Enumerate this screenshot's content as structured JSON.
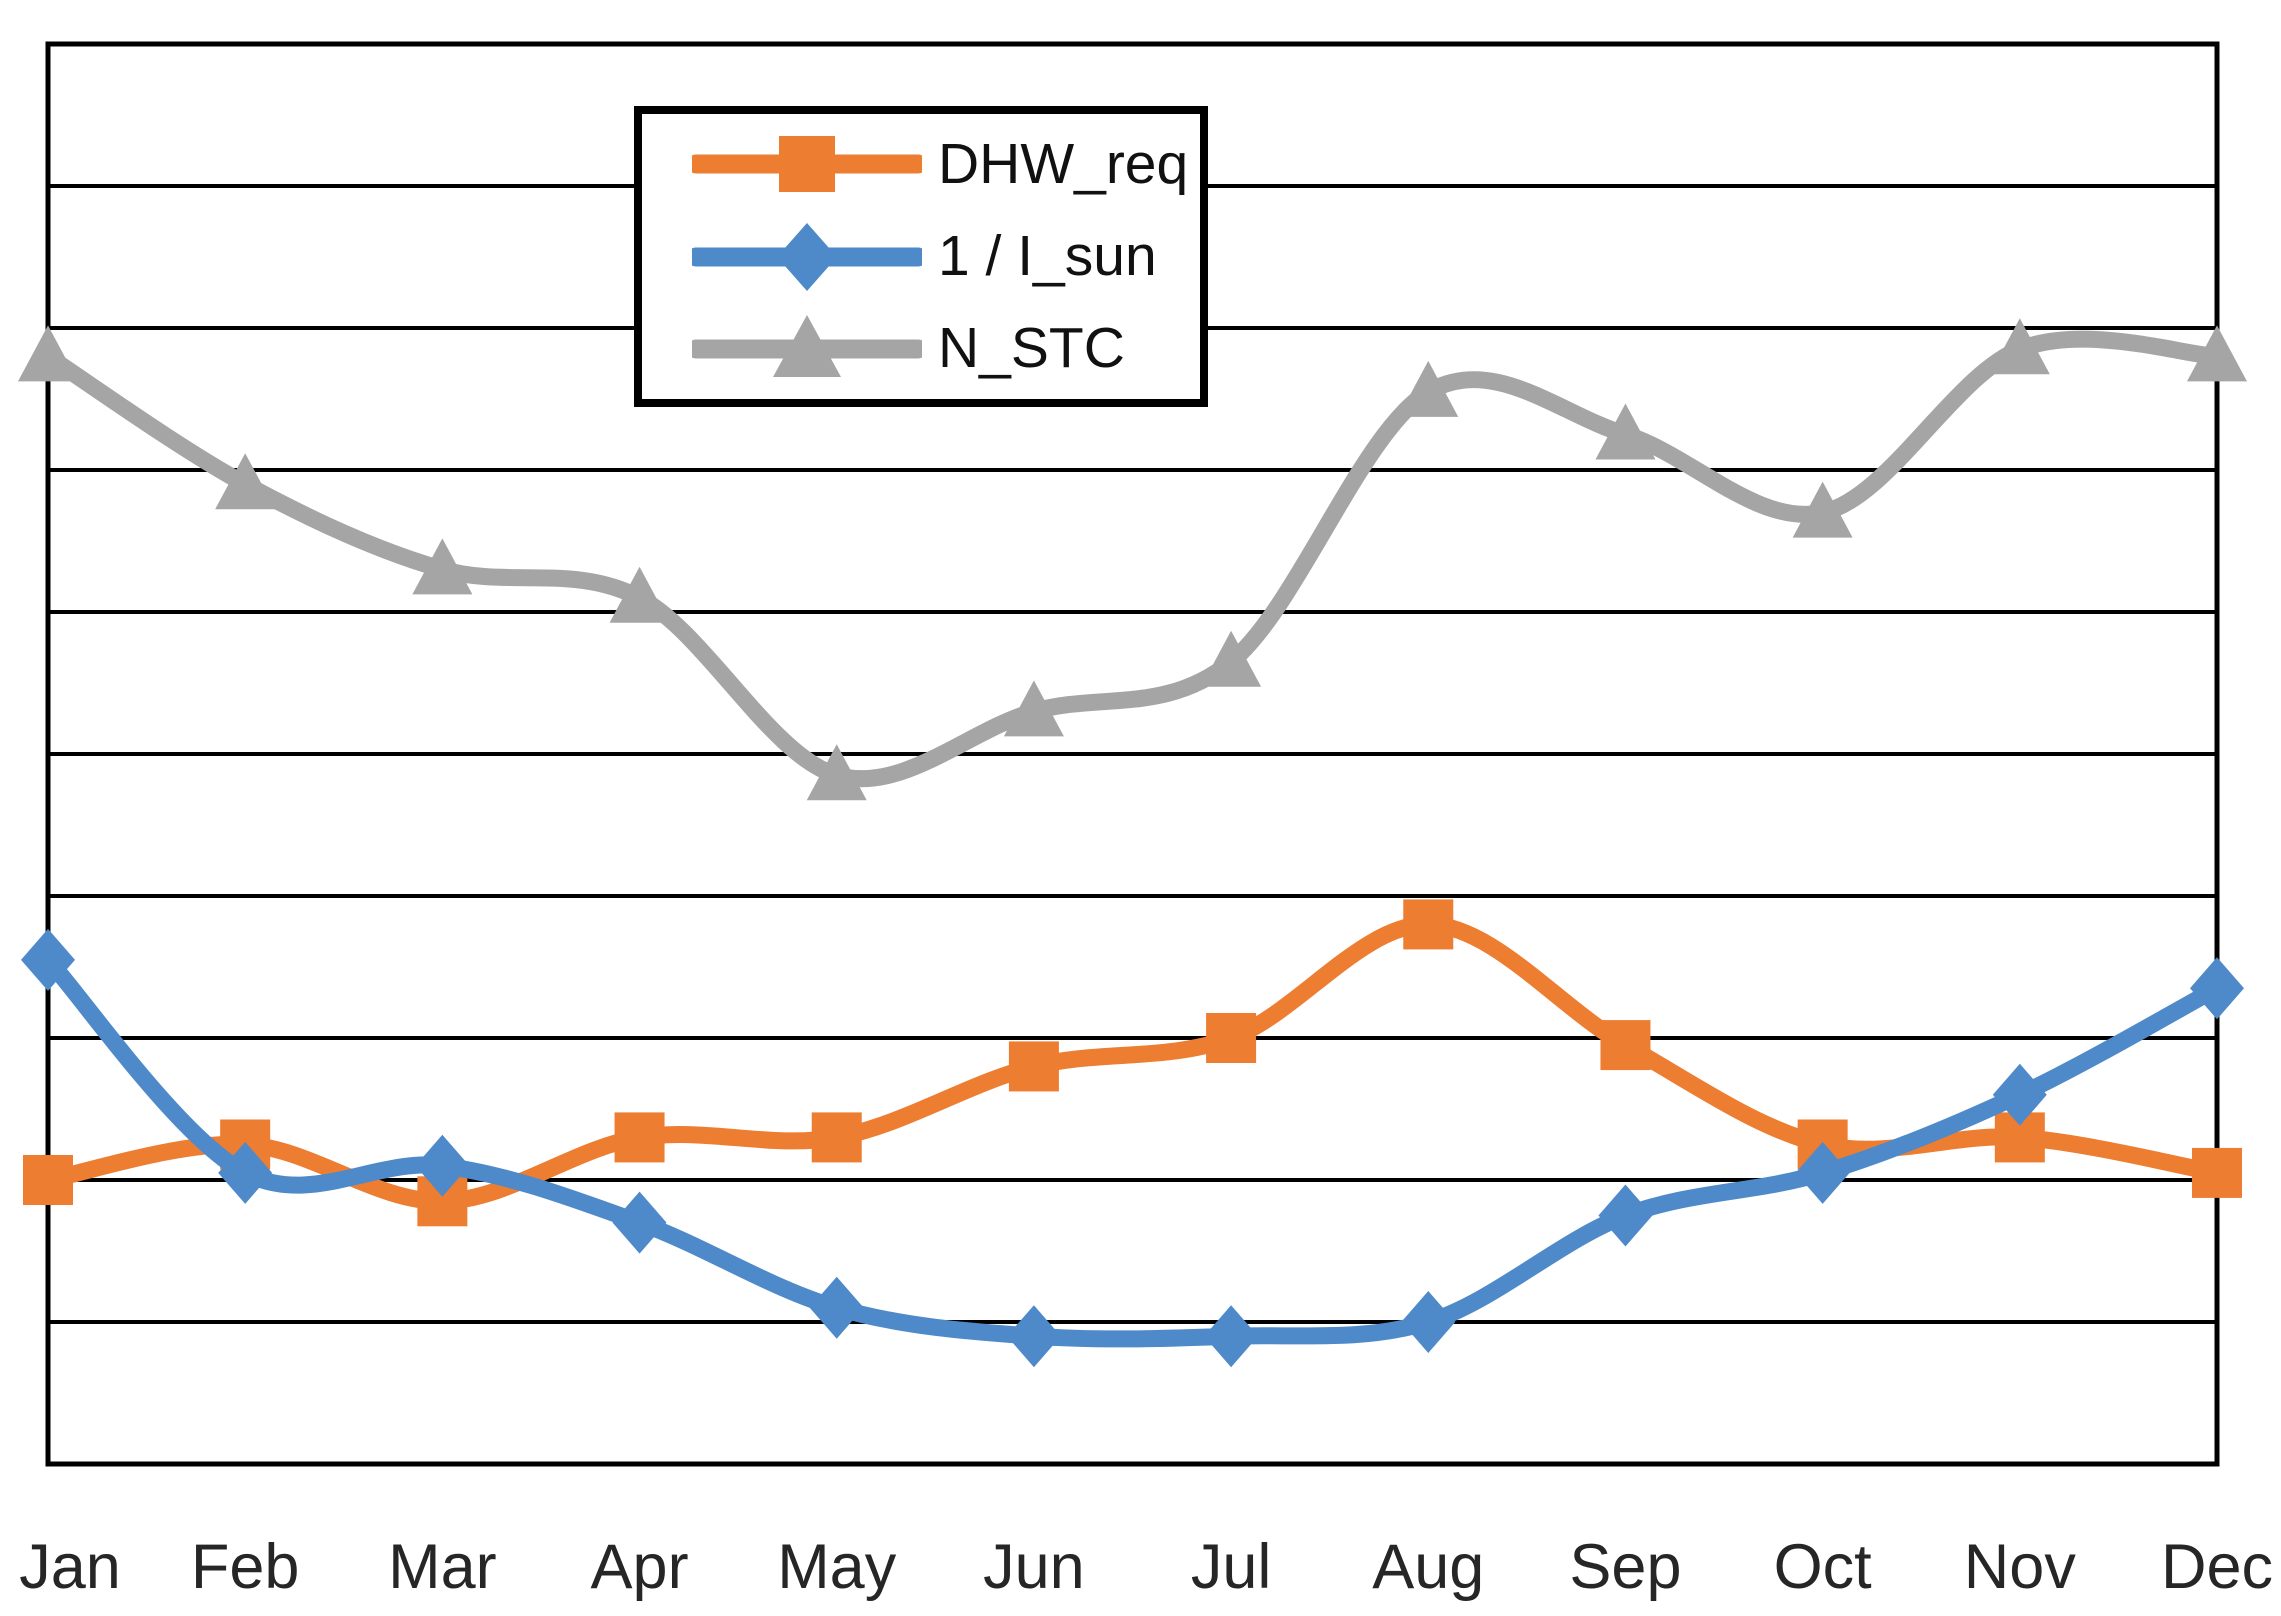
{
  "chart_data": {
    "type": "line",
    "smoothed": true,
    "title": "",
    "xlabel": "",
    "ylabel": "",
    "categories": [
      "Jan",
      "Feb",
      "Mar",
      "Apr",
      "May",
      "Jun",
      "Jul",
      "Aug",
      "Sep",
      "Oct",
      "Nov",
      "Dec"
    ],
    "x_axis": {
      "tick_labels_visible": true
    },
    "y_axis": {
      "tick_labels_visible": false,
      "range_gridline_units": [
        0,
        10
      ],
      "gridline_interval": 1
    },
    "grid": {
      "horizontal": true,
      "vertical": false,
      "color": "#000000"
    },
    "legend": {
      "position": "top-center-inset",
      "border_color": "#000000",
      "background": "#ffffff",
      "entries": [
        "DHW_req",
        "1 / I_sun",
        "N_STC"
      ]
    },
    "units_note": "no numeric y-axis labels shown; values expressed in horizontal-gridline units (bottom axis = 0, each gridline = 1, top = 10)",
    "series": [
      {
        "name": "DHW_req",
        "color": "#ED7D31",
        "marker": "square",
        "values": [
          2.0,
          2.25,
          1.85,
          2.3,
          2.3,
          2.8,
          3.0,
          3.8,
          2.95,
          2.25,
          2.3,
          2.05
        ]
      },
      {
        "name": "1 / I_sun",
        "color": "#4E8ACA",
        "marker": "diamond",
        "values": [
          3.55,
          2.05,
          2.1,
          1.7,
          1.1,
          0.9,
          0.9,
          1.0,
          1.75,
          2.05,
          2.6,
          3.35
        ]
      },
      {
        "name": "N_STC",
        "color": "#A5A5A5",
        "marker": "triangle",
        "values": [
          7.8,
          6.9,
          6.3,
          6.1,
          4.85,
          5.3,
          5.65,
          7.55,
          7.25,
          6.7,
          7.85,
          7.8
        ]
      }
    ]
  },
  "colors": {
    "background": "#ffffff",
    "plot_border": "#000000",
    "gridline": "#000000",
    "axis_text": "#262626",
    "legend_text": "#111111"
  }
}
